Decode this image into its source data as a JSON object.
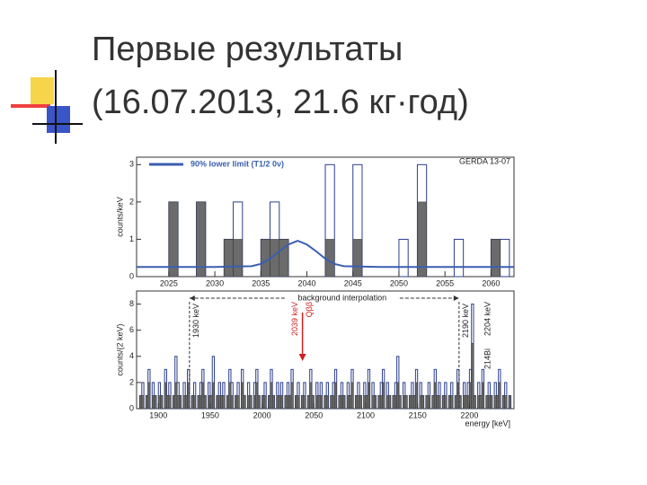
{
  "slide": {
    "title_lines": [
      "Первые результаты",
      "(16.07.2013, 21.6 кг·год)"
    ]
  },
  "chart_data": [
    {
      "type": "histogram",
      "ylabel": "counts/keV",
      "label": "GERDA 13-07",
      "xlim": [
        2021.5,
        2062.5
      ],
      "ylim": [
        0,
        3.2
      ],
      "xticks": [
        2025,
        2030,
        2035,
        2040,
        2045,
        2050,
        2055,
        2060
      ],
      "yticks": [
        0,
        1,
        2,
        3
      ],
      "bins": [
        2021,
        2022,
        2023,
        2024,
        2025,
        2026,
        2027,
        2028,
        2029,
        2030,
        2031,
        2032,
        2033,
        2034,
        2035,
        2036,
        2037,
        2038,
        2039,
        2040,
        2041,
        2042,
        2043,
        2044,
        2045,
        2046,
        2047,
        2048,
        2049,
        2050,
        2051,
        2052,
        2053,
        2054,
        2055,
        2056,
        2057,
        2058,
        2059,
        2060,
        2061,
        2062
      ],
      "series": [
        {
          "color": "#2b3f8f",
          "style": "outline",
          "values": [
            0,
            0,
            0,
            0,
            2,
            0,
            0,
            2,
            0,
            0,
            1,
            2,
            0,
            0,
            1,
            2,
            1,
            0,
            0,
            0,
            0,
            3,
            0,
            0,
            3,
            0,
            0,
            0,
            0,
            1,
            0,
            3,
            0,
            0,
            0,
            1,
            0,
            0,
            0,
            1,
            1
          ]
        },
        {
          "color": "#6b6b6b",
          "style": "filled",
          "values": [
            0,
            0,
            0,
            0,
            2,
            0,
            0,
            2,
            0,
            0,
            1,
            1,
            0,
            0,
            1,
            1,
            1,
            0,
            0,
            0,
            0,
            1,
            0,
            0,
            1,
            0,
            0,
            0,
            0,
            0,
            0,
            2,
            0,
            0,
            0,
            0,
            0,
            0,
            0,
            1,
            0
          ]
        }
      ],
      "lines": [
        {
          "name": "90% lower limit (T1/2 0ν)",
          "color": "#3a5fb0",
          "x": [
            2021.5,
            2030,
            2034,
            2035,
            2036,
            2037,
            2038,
            2039,
            2040,
            2041,
            2042,
            2043,
            2044,
            2048,
            2062.5
          ],
          "values": [
            0.26,
            0.26,
            0.28,
            0.34,
            0.48,
            0.68,
            0.86,
            0.96,
            0.86,
            0.68,
            0.48,
            0.34,
            0.28,
            0.26,
            0.26
          ]
        }
      ],
      "legend": "upper left"
    },
    {
      "type": "histogram",
      "ylabel": "counts/(2 keV)",
      "xlabel": "energy  [keV]",
      "xlim": [
        1879,
        2243
      ],
      "ylim": [
        0,
        9
      ],
      "xticks": [
        1900,
        1950,
        2000,
        2050,
        2100,
        2150,
        2200
      ],
      "yticks": [
        0,
        2,
        4,
        6,
        8
      ],
      "bins": [
        1880,
        1882,
        1884,
        1886,
        1888,
        1890,
        1892,
        1894,
        1896,
        1898,
        1900,
        1902,
        1904,
        1906,
        1908,
        1910,
        1912,
        1914,
        1916,
        1918,
        1920,
        1922,
        1924,
        1926,
        1928,
        1930,
        1932,
        1934,
        1936,
        1938,
        1940,
        1942,
        1944,
        1946,
        1948,
        1950,
        1952,
        1954,
        1956,
        1958,
        1960,
        1962,
        1964,
        1966,
        1968,
        1970,
        1972,
        1974,
        1976,
        1978,
        1980,
        1982,
        1984,
        1986,
        1988,
        1990,
        1992,
        1994,
        1996,
        1998,
        2000,
        2002,
        2004,
        2006,
        2008,
        2010,
        2012,
        2014,
        2016,
        2018,
        2020,
        2022,
        2024,
        2026,
        2028,
        2030,
        2032,
        2034,
        2036,
        2038,
        2040,
        2042,
        2044,
        2046,
        2048,
        2050,
        2052,
        2054,
        2056,
        2058,
        2060,
        2062,
        2064,
        2066,
        2068,
        2070,
        2072,
        2074,
        2076,
        2078,
        2080,
        2082,
        2084,
        2086,
        2088,
        2090,
        2092,
        2094,
        2096,
        2098,
        2100,
        2102,
        2104,
        2106,
        2108,
        2110,
        2112,
        2114,
        2116,
        2118,
        2120,
        2122,
        2124,
        2126,
        2128,
        2130,
        2132,
        2134,
        2136,
        2138,
        2140,
        2142,
        2144,
        2146,
        2148,
        2150,
        2152,
        2154,
        2156,
        2158,
        2160,
        2162,
        2164,
        2166,
        2168,
        2170,
        2172,
        2174,
        2176,
        2178,
        2180,
        2182,
        2184,
        2186,
        2188,
        2190,
        2192,
        2194,
        2196,
        2198,
        2200,
        2202,
        2204,
        2206,
        2208,
        2210,
        2212,
        2214,
        2216,
        2218,
        2220,
        2222,
        2224,
        2226,
        2228,
        2230,
        2232,
        2234,
        2236,
        2238,
        2240,
        2242
      ],
      "series": [
        {
          "color": "#2b3f8f",
          "style": "outline",
          "values": [
            0,
            1,
            2,
            0,
            1,
            3,
            0,
            2,
            1,
            0,
            2,
            1,
            0,
            3,
            1,
            2,
            0,
            1,
            4,
            2,
            1,
            0,
            2,
            1,
            3,
            0,
            1,
            2,
            0,
            1,
            2,
            3,
            1,
            0,
            2,
            1,
            4,
            0,
            1,
            2,
            1,
            2,
            0,
            1,
            3,
            2,
            0,
            1,
            2,
            0,
            3,
            1,
            0,
            2,
            1,
            0,
            2,
            3,
            1,
            0,
            1,
            2,
            0,
            1,
            3,
            1,
            0,
            2,
            1,
            2,
            0,
            1,
            2,
            1,
            3,
            0,
            1,
            2,
            0,
            1,
            2,
            0,
            1,
            3,
            1,
            0,
            2,
            1,
            2,
            0,
            1,
            2,
            0,
            1,
            2,
            3,
            0,
            1,
            2,
            1,
            0,
            2,
            1,
            3,
            0,
            1,
            2,
            1,
            0,
            2,
            1,
            3,
            0,
            2,
            1,
            0,
            1,
            2,
            3,
            0,
            2,
            1,
            0,
            1,
            2,
            4,
            1,
            0,
            2,
            1,
            0,
            1,
            2,
            1,
            3,
            0,
            2,
            1,
            0,
            1,
            2,
            0,
            1,
            3,
            1,
            2,
            0,
            1,
            2,
            0,
            1,
            2,
            0,
            1,
            3,
            1,
            0,
            2,
            1,
            2,
            3,
            8,
            1,
            0,
            2,
            1,
            3,
            0,
            1,
            2,
            1,
            0,
            2,
            1,
            3,
            0,
            1,
            2,
            0,
            1,
            0
          ]
        },
        {
          "color": "#6b6b6b",
          "style": "filled",
          "values": [
            0,
            1,
            1,
            0,
            1,
            2,
            0,
            1,
            1,
            0,
            1,
            1,
            0,
            2,
            1,
            1,
            0,
            1,
            2,
            1,
            1,
            0,
            1,
            1,
            2,
            0,
            1,
            1,
            0,
            1,
            1,
            2,
            1,
            0,
            1,
            1,
            2,
            0,
            1,
            1,
            1,
            1,
            0,
            1,
            2,
            1,
            0,
            1,
            1,
            0,
            2,
            1,
            0,
            1,
            1,
            0,
            1,
            2,
            1,
            0,
            1,
            1,
            0,
            1,
            2,
            1,
            0,
            1,
            1,
            1,
            0,
            1,
            1,
            1,
            2,
            0,
            1,
            1,
            0,
            1,
            1,
            0,
            1,
            2,
            1,
            0,
            1,
            1,
            1,
            0,
            1,
            1,
            0,
            1,
            1,
            2,
            0,
            1,
            1,
            1,
            0,
            1,
            1,
            2,
            0,
            1,
            1,
            1,
            0,
            1,
            1,
            2,
            0,
            1,
            1,
            0,
            1,
            1,
            2,
            0,
            1,
            1,
            0,
            1,
            1,
            2,
            1,
            0,
            1,
            1,
            0,
            1,
            1,
            1,
            2,
            0,
            1,
            1,
            0,
            1,
            1,
            0,
            1,
            2,
            1,
            1,
            0,
            1,
            1,
            0,
            1,
            1,
            0,
            1,
            2,
            1,
            0,
            1,
            1,
            1,
            2,
            5,
            1,
            0,
            1,
            1,
            2,
            0,
            1,
            1,
            1,
            0,
            1,
            1,
            2,
            0,
            1,
            1,
            0,
            1,
            0
          ]
        }
      ],
      "window": {
        "label": "background interpolation",
        "edges": [
          {
            "x": 1930,
            "label": "1930 keV"
          },
          {
            "x": 2190,
            "label": "2190 keV"
          }
        ]
      },
      "q_marker": {
        "x": 2039,
        "label": "2039 keV",
        "sublabel": "Qββ",
        "color": "#d02020"
      },
      "line_marker": {
        "x": 2204,
        "label": "2204 keV",
        "isotope": "214Bi"
      }
    }
  ]
}
